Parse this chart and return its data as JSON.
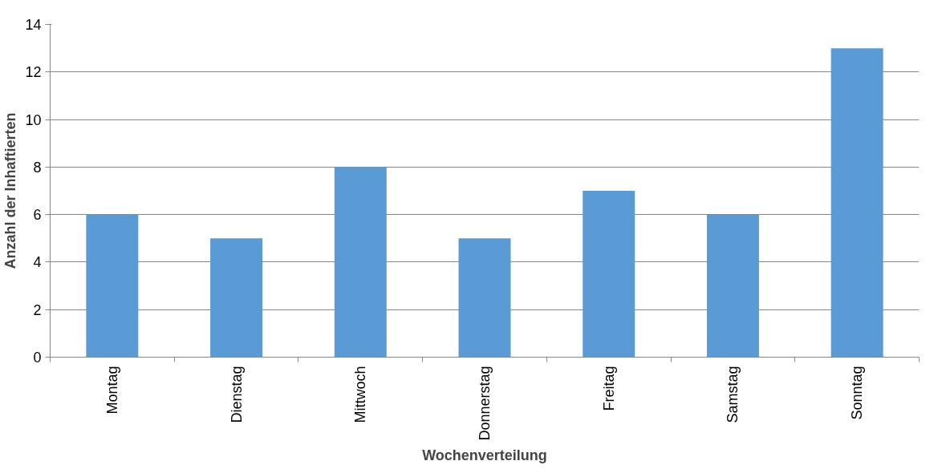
{
  "chart_data": {
    "type": "bar",
    "xlabel": "Wochenverteilung",
    "ylabel": "Anzahl der Inhaftierten",
    "categories": [
      "Montag",
      "Dienstag",
      "Mittwoch",
      "Donnerstag",
      "Freitag",
      "Samstag",
      "Sonntag"
    ],
    "values": [
      6,
      5,
      8,
      5,
      7,
      6,
      13
    ],
    "color": "#5b9bd5",
    "ylim": [
      0,
      14
    ],
    "yticks": [
      0,
      2,
      4,
      6,
      8,
      10,
      12,
      14
    ],
    "grid": "y"
  }
}
